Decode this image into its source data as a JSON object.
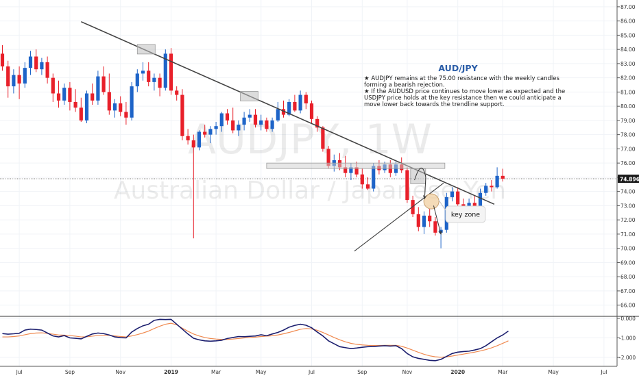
{
  "watermark": {
    "symbol": "AUDJPY, 1W",
    "name": "Australian Dollar / Japanese Yen"
  },
  "annotation": {
    "title": "AUD/JPY",
    "lines": [
      "★ AUDJPY remains at the 75.00 resistance with the weekly candles",
      "forming a bearish rejection.",
      "★ If the AUDUSD price continues to move lower as expected and the",
      "USDJPY price holds at the key resistance then we could anticipate a",
      "move lower back towards the trendline support."
    ],
    "key_zone_label": "key zone"
  },
  "colors": {
    "up": "#1e64c8",
    "down": "#e8202a",
    "text": "#1a1a1a",
    "title": "#2c5ea8",
    "trendline": "#444444",
    "osc_fast": "#1b1e6e",
    "osc_slow": "#f08a50",
    "price_tag_bg": "#1a1a1a"
  },
  "chart_data": [
    {
      "type": "candlestick",
      "title": "",
      "ylim": [
        65.4,
        87.2
      ],
      "y_ticks": [
        66,
        67,
        68,
        69,
        70,
        71,
        72,
        73,
        74,
        75,
        76,
        77,
        78,
        79,
        80,
        81,
        82,
        83,
        84,
        85,
        86,
        87
      ],
      "y_tick_format": "0.00",
      "x_labels": [
        "Jul",
        "Sep",
        "Nov",
        "2019",
        "Mar",
        "May",
        "Jul",
        "Sep",
        "Nov",
        "2020",
        "Mar",
        "May",
        "Jul"
      ],
      "x_label_weeks": [
        3,
        12,
        21,
        30,
        38,
        46,
        55,
        64,
        72,
        81,
        89,
        98,
        107
      ],
      "last_price": "74.896",
      "candles": [
        [
          83.7,
          84.3,
          82.5,
          82.8
        ],
        [
          82.8,
          83.2,
          80.6,
          81.4
        ],
        [
          81.4,
          82.6,
          80.9,
          82.2
        ],
        [
          82.2,
          82.8,
          80.5,
          81.6
        ],
        [
          81.6,
          83.1,
          81.3,
          82.7
        ],
        [
          82.7,
          83.9,
          82.2,
          83.5
        ],
        [
          83.5,
          84.0,
          82.4,
          82.6
        ],
        [
          82.6,
          83.4,
          82.2,
          83.1
        ],
        [
          83.1,
          83.5,
          81.6,
          82.0
        ],
        [
          82.0,
          82.3,
          80.3,
          80.9
        ],
        [
          80.9,
          81.8,
          79.9,
          80.4
        ],
        [
          80.4,
          81.6,
          80.1,
          81.3
        ],
        [
          81.3,
          81.7,
          79.7,
          80.3
        ],
        [
          80.3,
          81.2,
          79.6,
          79.9
        ],
        [
          79.9,
          80.6,
          78.9,
          79.0
        ],
        [
          79.0,
          81.1,
          78.8,
          80.9
        ],
        [
          80.9,
          81.6,
          80.1,
          80.4
        ],
        [
          80.4,
          82.5,
          80.1,
          82.1
        ],
        [
          82.1,
          82.8,
          80.8,
          81.0
        ],
        [
          81.0,
          82.3,
          79.4,
          79.7
        ],
        [
          79.7,
          80.5,
          79.2,
          80.2
        ],
        [
          80.2,
          80.7,
          79.3,
          79.6
        ],
        [
          79.6,
          80.3,
          78.7,
          79.2
        ],
        [
          79.2,
          81.7,
          79.0,
          81.4
        ],
        [
          81.4,
          82.6,
          81.0,
          82.3
        ],
        [
          82.3,
          83.1,
          81.8,
          82.5
        ],
        [
          82.5,
          83.1,
          81.4,
          81.7
        ],
        [
          81.7,
          82.3,
          81.1,
          82.0
        ],
        [
          82.0,
          82.3,
          80.7,
          81.3
        ],
        [
          81.3,
          84.0,
          81.1,
          83.7
        ],
        [
          83.7,
          84.1,
          80.8,
          81.1
        ],
        [
          81.1,
          81.4,
          80.4,
          80.8
        ],
        [
          80.8,
          81.2,
          77.6,
          77.9
        ],
        [
          77.9,
          78.4,
          77.3,
          77.6
        ],
        [
          77.6,
          78.0,
          70.7,
          77.1
        ],
        [
          77.1,
          78.3,
          76.9,
          78.2
        ],
        [
          78.2,
          78.7,
          77.8,
          78.0
        ],
        [
          78.0,
          78.6,
          77.4,
          78.4
        ],
        [
          78.4,
          78.9,
          78.0,
          78.6
        ],
        [
          78.6,
          79.6,
          78.2,
          79.5
        ],
        [
          79.5,
          79.8,
          78.7,
          79.0
        ],
        [
          79.0,
          79.9,
          78.1,
          78.3
        ],
        [
          78.3,
          79.0,
          77.9,
          78.7
        ],
        [
          78.7,
          79.6,
          78.3,
          79.2
        ],
        [
          79.2,
          79.8,
          78.9,
          79.4
        ],
        [
          79.4,
          79.8,
          78.5,
          78.7
        ],
        [
          78.7,
          79.4,
          78.3,
          79.0
        ],
        [
          79.0,
          79.2,
          78.2,
          78.4
        ],
        [
          78.4,
          79.2,
          78.2,
          79.0
        ],
        [
          79.0,
          80.3,
          78.9,
          79.8
        ],
        [
          79.8,
          80.4,
          79.2,
          79.4
        ],
        [
          79.4,
          80.5,
          79.3,
          80.3
        ],
        [
          80.3,
          80.8,
          79.6,
          79.7
        ],
        [
          79.7,
          81.1,
          79.5,
          80.8
        ],
        [
          80.8,
          81.0,
          79.8,
          80.2
        ],
        [
          80.2,
          80.4,
          78.8,
          79.1
        ],
        [
          79.1,
          79.3,
          78.2,
          78.5
        ],
        [
          78.5,
          78.6,
          76.8,
          77.0
        ],
        [
          77.0,
          77.2,
          75.6,
          75.8
        ],
        [
          75.8,
          76.6,
          75.4,
          76.2
        ],
        [
          76.2,
          76.7,
          75.5,
          75.7
        ],
        [
          75.7,
          76.5,
          75.0,
          75.3
        ],
        [
          75.3,
          76.0,
          74.8,
          75.7
        ],
        [
          75.7,
          76.1,
          75.0,
          75.2
        ],
        [
          75.2,
          75.6,
          74.2,
          74.5
        ],
        [
          74.5,
          75.0,
          74.1,
          74.2
        ],
        [
          74.2,
          76.0,
          74.0,
          75.8
        ],
        [
          75.8,
          76.2,
          75.2,
          75.5
        ],
        [
          75.5,
          76.1,
          75.3,
          75.9
        ],
        [
          75.9,
          76.2,
          75.0,
          75.3
        ],
        [
          75.3,
          76.1,
          75.1,
          75.9
        ],
        [
          75.9,
          76.4,
          75.3,
          75.5
        ],
        [
          75.5,
          75.7,
          73.2,
          73.4
        ],
        [
          73.4,
          73.7,
          72.2,
          72.4
        ],
        [
          72.4,
          72.9,
          71.2,
          71.5
        ],
        [
          71.5,
          72.6,
          71.0,
          72.3
        ],
        [
          72.3,
          72.8,
          71.5,
          71.9
        ],
        [
          71.9,
          72.2,
          70.9,
          71.1
        ],
        [
          71.1,
          71.5,
          70.0,
          71.3
        ],
        [
          71.3,
          73.9,
          71.1,
          73.6
        ],
        [
          73.6,
          74.3,
          73.3,
          74.0
        ],
        [
          74.0,
          74.3,
          72.6,
          73.1
        ],
        [
          73.1,
          73.5,
          72.3,
          72.6
        ],
        [
          72.6,
          73.5,
          72.3,
          73.2
        ],
        [
          73.2,
          73.7,
          72.1,
          72.2
        ],
        [
          72.2,
          74.2,
          72.0,
          73.9
        ],
        [
          73.9,
          74.6,
          73.7,
          74.4
        ],
        [
          74.4,
          74.8,
          74.0,
          74.3
        ],
        [
          74.3,
          75.7,
          74.2,
          75.1
        ],
        [
          75.1,
          75.6,
          74.7,
          74.9
        ]
      ]
    },
    {
      "type": "line",
      "title": "",
      "ylim": [
        -2.4,
        0.15
      ],
      "y_ticks": [
        0,
        -1,
        -2
      ],
      "y_tick_format": "0.000",
      "series": [
        {
          "values": [
            -0.78,
            -0.81,
            -0.79,
            -0.76,
            -0.6,
            -0.55,
            -0.57,
            -0.6,
            -0.75,
            -0.9,
            -0.95,
            -0.88,
            -1.0,
            -1.02,
            -1.05,
            -0.92,
            -0.8,
            -0.75,
            -0.78,
            -0.85,
            -0.95,
            -0.99,
            -1.0,
            -0.7,
            -0.52,
            -0.38,
            -0.3,
            -0.1,
            -0.05,
            -0.06,
            -0.05,
            -0.3,
            -0.55,
            -0.8,
            -1.02,
            -1.1,
            -1.15,
            -1.17,
            -1.15,
            -1.12,
            -1.03,
            -0.98,
            -0.93,
            -0.94,
            -0.92,
            -0.9,
            -0.84,
            -0.89,
            -0.8,
            -0.72,
            -0.6,
            -0.45,
            -0.36,
            -0.3,
            -0.35,
            -0.48,
            -0.7,
            -0.9,
            -1.15,
            -1.3,
            -1.45,
            -1.5,
            -1.55,
            -1.52,
            -1.48,
            -1.45,
            -1.44,
            -1.42,
            -1.4,
            -1.42,
            -1.4,
            -1.55,
            -1.8,
            -1.97,
            -2.05,
            -2.1,
            -2.15,
            -2.17,
            -2.1,
            -1.95,
            -1.8,
            -1.73,
            -1.7,
            -1.68,
            -1.62,
            -1.55,
            -1.4,
            -1.2,
            -1.0,
            -0.85,
            -0.65
          ]
        },
        {
          "values": [
            -0.95,
            -0.95,
            -0.93,
            -0.9,
            -0.84,
            -0.78,
            -0.75,
            -0.74,
            -0.77,
            -0.81,
            -0.85,
            -0.86,
            -0.88,
            -0.91,
            -0.95,
            -0.94,
            -0.91,
            -0.88,
            -0.87,
            -0.87,
            -0.9,
            -0.93,
            -0.95,
            -0.9,
            -0.83,
            -0.75,
            -0.65,
            -0.52,
            -0.4,
            -0.3,
            -0.25,
            -0.33,
            -0.5,
            -0.66,
            -0.8,
            -0.9,
            -0.98,
            -1.03,
            -1.06,
            -1.08,
            -1.08,
            -1.06,
            -1.03,
            -1.0,
            -0.98,
            -0.96,
            -0.93,
            -0.91,
            -0.89,
            -0.85,
            -0.79,
            -0.72,
            -0.64,
            -0.56,
            -0.52,
            -0.54,
            -0.61,
            -0.72,
            -0.85,
            -0.98,
            -1.1,
            -1.2,
            -1.28,
            -1.33,
            -1.36,
            -1.38,
            -1.39,
            -1.39,
            -1.38,
            -1.38,
            -1.38,
            -1.43,
            -1.52,
            -1.63,
            -1.74,
            -1.84,
            -1.92,
            -1.97,
            -1.99,
            -1.97,
            -1.93,
            -1.88,
            -1.83,
            -1.78,
            -1.73,
            -1.67,
            -1.6,
            -1.51,
            -1.4,
            -1.28,
            -1.15
          ]
        }
      ]
    }
  ]
}
